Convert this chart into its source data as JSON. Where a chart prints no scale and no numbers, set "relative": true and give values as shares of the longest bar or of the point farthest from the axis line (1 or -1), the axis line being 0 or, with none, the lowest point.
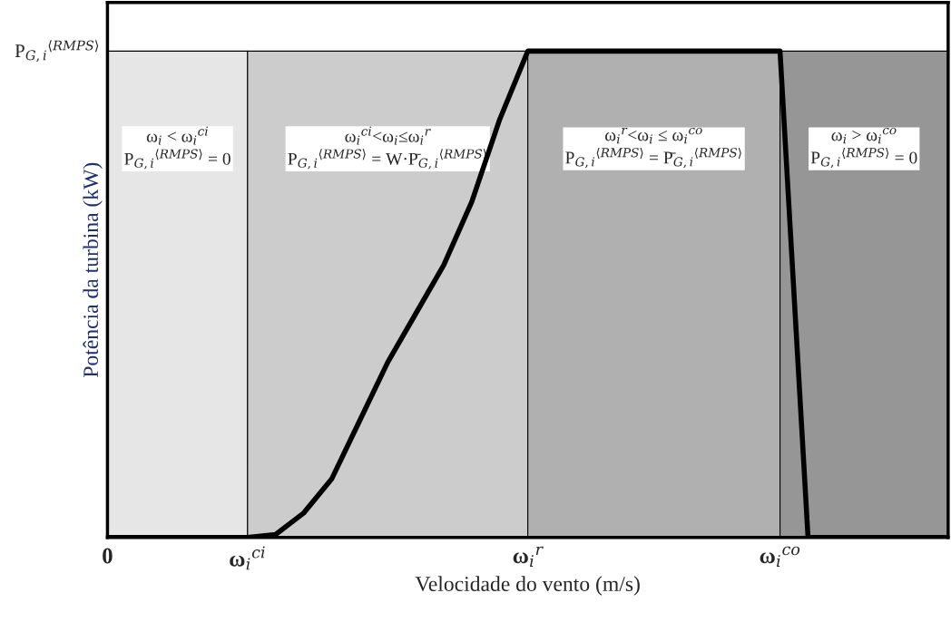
{
  "chart_data": {
    "type": "line",
    "relative": true,
    "xlabel": "Velocidade do vento (m/s)",
    "ylabel": "Potência da turbina (kW)",
    "categories": [
      "0",
      null,
      null,
      null,
      null,
      "ω$_{i}$$^{ci}$",
      null,
      null,
      null,
      null,
      null,
      null,
      null,
      null,
      null,
      "ω$_{i}$$^{r}$",
      null,
      null,
      null,
      null,
      null,
      null,
      null,
      null,
      "ω$_{i}$$^{co}$",
      null,
      null,
      null,
      null,
      null,
      null
    ],
    "series": [
      {
        "type": "area",
        "color": "#e6e6e6",
        "name": "ω$_{i}$ < ω$_{i}$$^{ci}$\nP$_{G,i}$$^{⟨RMPS⟩}$ = 0",
        "values": [
          1,
          1,
          1,
          1,
          1,
          1,
          null,
          null,
          null,
          null,
          null,
          null,
          null,
          null,
          null,
          null,
          null,
          null,
          null,
          null,
          null,
          null,
          null,
          null,
          null,
          null,
          null,
          null,
          null,
          null,
          null
        ]
      },
      {
        "type": "area",
        "color": "#cccccc",
        "name": "ω$_{i}$$^{ci}$<ω$_{i}$≤ω$_{i}$$^{r}$\nP$_{G,i}$$^{⟨RMPS⟩}$ = W·P̄$_{G,i}$$^{⟨RMPS⟩}$",
        "values": [
          null,
          null,
          null,
          null,
          null,
          1,
          1,
          1,
          1,
          1,
          1,
          1,
          1,
          1,
          1,
          1,
          null,
          null,
          null,
          null,
          null,
          null,
          null,
          null,
          null,
          null,
          null,
          null,
          null,
          null,
          null
        ]
      },
      {
        "type": "area",
        "color": "#b0b0b0",
        "name": "ω$_{i}$$^{r}$<ω$_{i}$ ≤ ω$_{i}$$^{co}$\nP$_{G,i}$$^{⟨RMPS⟩}$ = P̄$_{G,i}$$^{⟨RMPS⟩}$",
        "values": [
          null,
          null,
          null,
          null,
          null,
          null,
          null,
          null,
          null,
          null,
          null,
          null,
          null,
          null,
          null,
          1,
          1,
          1,
          1,
          1,
          1,
          1,
          1,
          1,
          1,
          null,
          null,
          null,
          null,
          null,
          null
        ]
      },
      {
        "type": "area",
        "color": "#969696",
        "name": "ω$_{i}$ > ω$_{i}$$^{co}$\nP$_{G,i}$$^{⟨RMPS⟩}$ = 0",
        "values": [
          null,
          null,
          null,
          null,
          null,
          null,
          null,
          null,
          null,
          null,
          null,
          null,
          null,
          null,
          null,
          null,
          null,
          null,
          null,
          null,
          null,
          null,
          null,
          null,
          1,
          1,
          1,
          1,
          1,
          1,
          1
        ]
      },
      {
        "color": "#000000",
        "values": [
          0,
          0,
          0,
          0,
          0,
          0,
          0.006,
          0.05,
          0.12,
          0.24,
          0.36,
          0.46,
          0.56,
          0.69,
          0.86,
          1,
          1,
          1,
          1,
          1,
          1,
          1,
          1,
          1,
          1,
          0,
          0,
          0,
          0,
          0,
          0
        ]
      }
    ],
    "annotations": [
      "P$_{G,i}$$^{⟨RMPS⟩}$"
    ],
    "grid": false,
    "legend": false,
    "line_style": "solid",
    "marker": "none"
  }
}
